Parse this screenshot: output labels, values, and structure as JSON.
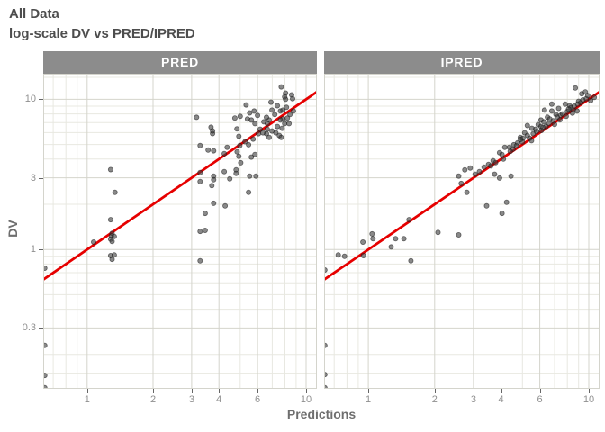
{
  "header": {
    "title": "All Data",
    "subtitle": "log-scale DV vs PRED/IPRED"
  },
  "axes": {
    "x_label": "Predictions",
    "y_label": "DV",
    "x_scale": "log10",
    "y_scale": "log10",
    "x_domain": [
      0.63,
      11.2
    ],
    "y_domain": [
      0.118,
      14.8
    ],
    "x_breaks": [
      1,
      2,
      3,
      4,
      6,
      10
    ],
    "x_tick_labels": [
      "1",
      "2",
      "3",
      "4",
      "6",
      "10"
    ],
    "y_breaks": [
      0.3,
      1,
      3,
      10
    ],
    "y_tick_labels": [
      "0.3",
      "1",
      "3",
      "10"
    ],
    "x_minor": [
      0.7,
      0.8,
      0.9,
      5,
      7,
      8,
      9
    ],
    "y_minor": [
      0.15,
      0.2,
      0.4,
      0.5,
      0.6,
      0.7,
      0.8,
      0.9,
      2,
      4,
      5,
      6,
      7,
      8,
      9,
      14
    ]
  },
  "colors": {
    "accent_red": "#e60000",
    "strip_bg": "#8c8c8c",
    "strip_text": "#ffffff",
    "title_text": "#4d4d4d",
    "axis_title_text": "#6e6e6e",
    "tick_text": "#8f8f8f",
    "tick_mark": "#666666",
    "grid_major": "#d4d4cc",
    "grid_minor": "#e8e8e1",
    "panel_border": "#d4d4cc",
    "point_fill": "#404040",
    "point_stroke": "#101010"
  },
  "chart_data": {
    "type": "scatter",
    "title": "All Data",
    "subtitle": "log-scale DV vs PRED/IPRED",
    "xlabel": "Predictions",
    "ylabel": "DV",
    "grid": true,
    "reference_line": {
      "type": "identity",
      "color": "#e60000",
      "width": 2.8
    },
    "facets": [
      {
        "label": "PRED",
        "points": [
          [
            0.64,
            0.75
          ],
          [
            0.64,
            0.23
          ],
          [
            0.64,
            0.145
          ],
          [
            0.64,
            0.12
          ],
          [
            1.07,
            1.12
          ],
          [
            1.28,
            3.4
          ],
          [
            1.34,
            2.4
          ],
          [
            1.28,
            1.58
          ],
          [
            1.3,
            1.28
          ],
          [
            1.29,
            1.23
          ],
          [
            1.33,
            1.22
          ],
          [
            1.28,
            1.17
          ],
          [
            1.3,
            1.13
          ],
          [
            1.28,
            0.91
          ],
          [
            1.33,
            0.92
          ],
          [
            1.3,
            0.86
          ],
          [
            3.28,
            4.92
          ],
          [
            3.57,
            4.59
          ],
          [
            3.78,
            4.54
          ],
          [
            3.74,
            5.91
          ],
          [
            3.68,
            6.52
          ],
          [
            4.23,
            4.35
          ],
          [
            4.36,
            4.79
          ],
          [
            4.93,
            5.67
          ],
          [
            4.98,
            4.92
          ],
          [
            4.84,
            4.47
          ],
          [
            4.93,
            4.17
          ],
          [
            5.03,
            3.78
          ],
          [
            4.79,
            3.39
          ],
          [
            4.79,
            3.21
          ],
          [
            5.62,
            4.12
          ],
          [
            5.84,
            4.29
          ],
          [
            5.52,
            3.08
          ],
          [
            5.9,
            3.08
          ],
          [
            4.48,
            2.95
          ],
          [
            3.78,
            3.08
          ],
          [
            3.78,
            2.91
          ],
          [
            3.28,
            3.25
          ],
          [
            3.28,
            2.83
          ],
          [
            3.71,
            2.66
          ],
          [
            5.46,
            2.4
          ],
          [
            3.78,
            2.03
          ],
          [
            4.27,
            1.95
          ],
          [
            3.46,
            1.74
          ],
          [
            3.28,
            1.32
          ],
          [
            3.46,
            1.34
          ],
          [
            3.28,
            0.84
          ],
          [
            3.16,
            7.59
          ],
          [
            3.74,
            6.16
          ],
          [
            4.23,
            3.3
          ],
          [
            4.73,
            7.5
          ],
          [
            5.0,
            7.7
          ],
          [
            4.83,
            6.35
          ],
          [
            5.4,
            7.4
          ],
          [
            7.7,
            12.1
          ],
          [
            8.06,
            11.0
          ],
          [
            7.98,
            10.4
          ],
          [
            8.06,
            10.0
          ],
          [
            7.39,
            9.07
          ],
          [
            6.91,
            9.57
          ],
          [
            6.98,
            8.47
          ],
          [
            7.19,
            7.92
          ],
          [
            7.63,
            8.36
          ],
          [
            7.84,
            8.47
          ],
          [
            8.13,
            8.84
          ],
          [
            8.59,
            10.7
          ],
          [
            8.67,
            10.1
          ],
          [
            8.75,
            8.36
          ],
          [
            8.44,
            7.92
          ],
          [
            8.21,
            7.49
          ],
          [
            7.84,
            7.39
          ],
          [
            7.63,
            7.28
          ],
          [
            7.98,
            6.89
          ],
          [
            8.36,
            6.89
          ],
          [
            7.77,
            6.41
          ],
          [
            7.39,
            6.59
          ],
          [
            6.78,
            7.28
          ],
          [
            6.65,
            6.89
          ],
          [
            6.59,
            7.59
          ],
          [
            6.41,
            7.08
          ],
          [
            6.65,
            6.32
          ],
          [
            6.98,
            6.15
          ],
          [
            7.27,
            5.98
          ],
          [
            7.55,
            5.74
          ],
          [
            7.7,
            5.58
          ],
          [
            6.78,
            5.58
          ],
          [
            6.59,
            5.9
          ],
          [
            6.35,
            5.98
          ],
          [
            6.17,
            6.32
          ],
          [
            5.32,
            9.18
          ],
          [
            5.52,
            8.12
          ],
          [
            5.79,
            8.36
          ],
          [
            6.0,
            7.81
          ],
          [
            5.62,
            7.28
          ],
          [
            5.84,
            6.89
          ],
          [
            6.06,
            5.9
          ],
          [
            5.73,
            5.43
          ],
          [
            5.46,
            4.98
          ],
          [
            5.26,
            5.22
          ]
        ]
      },
      {
        "label": "IPRED",
        "points": [
          [
            0.635,
            0.73
          ],
          [
            0.635,
            0.23
          ],
          [
            0.635,
            0.147
          ],
          [
            0.635,
            0.12
          ],
          [
            0.73,
            0.92
          ],
          [
            0.78,
            0.9
          ],
          [
            0.95,
            0.91
          ],
          [
            0.945,
            1.12
          ],
          [
            1.04,
            1.27
          ],
          [
            1.05,
            1.18
          ],
          [
            1.27,
            1.04
          ],
          [
            1.33,
            1.18
          ],
          [
            1.45,
            1.18
          ],
          [
            1.53,
            1.58
          ],
          [
            1.56,
            0.84
          ],
          [
            2.07,
            1.3
          ],
          [
            2.57,
            1.25
          ],
          [
            2.57,
            3.08
          ],
          [
            2.64,
            2.75
          ],
          [
            2.74,
            3.39
          ],
          [
            2.8,
            2.4
          ],
          [
            8.7,
            11.9
          ],
          [
            9.3,
            10.9
          ],
          [
            9.65,
            11.2
          ],
          [
            9.74,
            10.1
          ],
          [
            9.0,
            9.7
          ],
          [
            7.82,
            9.3
          ],
          [
            8.2,
            9.05
          ],
          [
            7.3,
            8.7
          ],
          [
            8.44,
            8.1
          ],
          [
            8.85,
            8.36
          ],
          [
            7.1,
            7.92
          ],
          [
            7.45,
            7.81
          ],
          [
            6.8,
            8.36
          ],
          [
            6.3,
            8.47
          ],
          [
            6.5,
            7.6
          ],
          [
            6.66,
            7.39
          ],
          [
            6.07,
            7.28
          ],
          [
            6.25,
            7.08
          ],
          [
            5.9,
            6.78
          ],
          [
            6.07,
            6.59
          ],
          [
            5.74,
            6.32
          ],
          [
            5.52,
            6.41
          ],
          [
            5.27,
            6.69
          ],
          [
            5.12,
            5.98
          ],
          [
            5.27,
            5.74
          ],
          [
            4.89,
            5.58
          ],
          [
            5.03,
            5.5
          ],
          [
            4.57,
            4.98
          ],
          [
            4.76,
            5.13
          ],
          [
            4.36,
            4.79
          ],
          [
            4.53,
            4.66
          ],
          [
            4.16,
            4.79
          ],
          [
            3.94,
            4.41
          ],
          [
            4.04,
            4.29
          ],
          [
            3.68,
            3.9
          ],
          [
            3.78,
            3.79
          ],
          [
            3.51,
            3.68
          ],
          [
            3.35,
            3.53
          ],
          [
            3.19,
            3.3
          ],
          [
            3.05,
            3.17
          ],
          [
            2.9,
            3.49
          ],
          [
            3.74,
            3.17
          ],
          [
            3.94,
            2.99
          ],
          [
            4.44,
            3.08
          ],
          [
            3.44,
            1.95
          ],
          [
            4.24,
            2.06
          ],
          [
            4.04,
            1.74
          ],
          [
            10.6,
            10.3
          ],
          [
            6.8,
            9.3
          ],
          [
            5.4,
            5.5
          ],
          [
            5.6,
            5.9
          ],
          [
            6.9,
            7.2
          ],
          [
            7.2,
            7.6
          ],
          [
            7.6,
            8.0
          ],
          [
            8.0,
            8.3
          ],
          [
            8.3,
            8.8
          ],
          [
            8.6,
            9.0
          ],
          [
            6.1,
            6.2
          ],
          [
            6.4,
            6.6
          ],
          [
            5.0,
            5.2
          ],
          [
            4.7,
            4.9
          ],
          [
            7.9,
            7.7
          ],
          [
            8.1,
            8.6
          ],
          [
            7.0,
            6.8
          ],
          [
            6.6,
            6.9
          ],
          [
            9.2,
            9.5
          ],
          [
            8.9,
            9.3
          ],
          [
            5.8,
            6.1
          ],
          [
            4.4,
            4.5
          ],
          [
            9.4,
            9.9
          ],
          [
            8.5,
            8.5
          ],
          [
            7.4,
            7.3
          ],
          [
            6.2,
            6.5
          ],
          [
            5.5,
            5.3
          ],
          [
            4.9,
            5.4
          ],
          [
            4.1,
            4.0
          ],
          [
            3.6,
            3.6
          ],
          [
            9.9,
            10.6
          ],
          [
            10.2,
            9.8
          ]
        ]
      }
    ]
  }
}
